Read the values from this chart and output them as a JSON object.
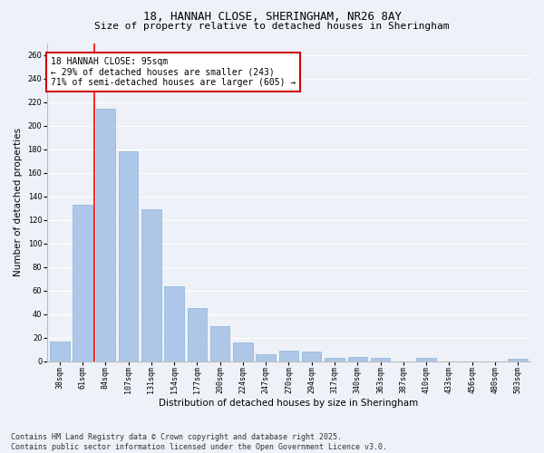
{
  "title": "18, HANNAH CLOSE, SHERINGHAM, NR26 8AY",
  "subtitle": "Size of property relative to detached houses in Sheringham",
  "xlabel": "Distribution of detached houses by size in Sheringham",
  "ylabel": "Number of detached properties",
  "categories": [
    "38sqm",
    "61sqm",
    "84sqm",
    "107sqm",
    "131sqm",
    "154sqm",
    "177sqm",
    "200sqm",
    "224sqm",
    "247sqm",
    "270sqm",
    "294sqm",
    "317sqm",
    "340sqm",
    "363sqm",
    "387sqm",
    "410sqm",
    "433sqm",
    "456sqm",
    "480sqm",
    "503sqm"
  ],
  "values": [
    17,
    133,
    214,
    178,
    129,
    64,
    45,
    30,
    16,
    6,
    9,
    8,
    3,
    4,
    3,
    0,
    3,
    0,
    0,
    0,
    2
  ],
  "bar_color": "#aec6e8",
  "bar_edgecolor": "#8ab4d8",
  "red_line_x": 1.5,
  "annotation_text": "18 HANNAH CLOSE: 95sqm\n← 29% of detached houses are smaller (243)\n71% of semi-detached houses are larger (605) →",
  "annotation_box_color": "#ffffff",
  "annotation_box_edgecolor": "#cc0000",
  "ylim": [
    0,
    270
  ],
  "yticks": [
    0,
    20,
    40,
    60,
    80,
    100,
    120,
    140,
    160,
    180,
    200,
    220,
    240,
    260
  ],
  "background_color": "#eef2f8",
  "grid_color": "#ffffff",
  "footer": "Contains HM Land Registry data © Crown copyright and database right 2025.\nContains public sector information licensed under the Open Government Licence v3.0.",
  "title_fontsize": 9,
  "subtitle_fontsize": 8,
  "xlabel_fontsize": 7.5,
  "ylabel_fontsize": 7.5,
  "tick_fontsize": 6,
  "annotation_fontsize": 7,
  "footer_fontsize": 6
}
